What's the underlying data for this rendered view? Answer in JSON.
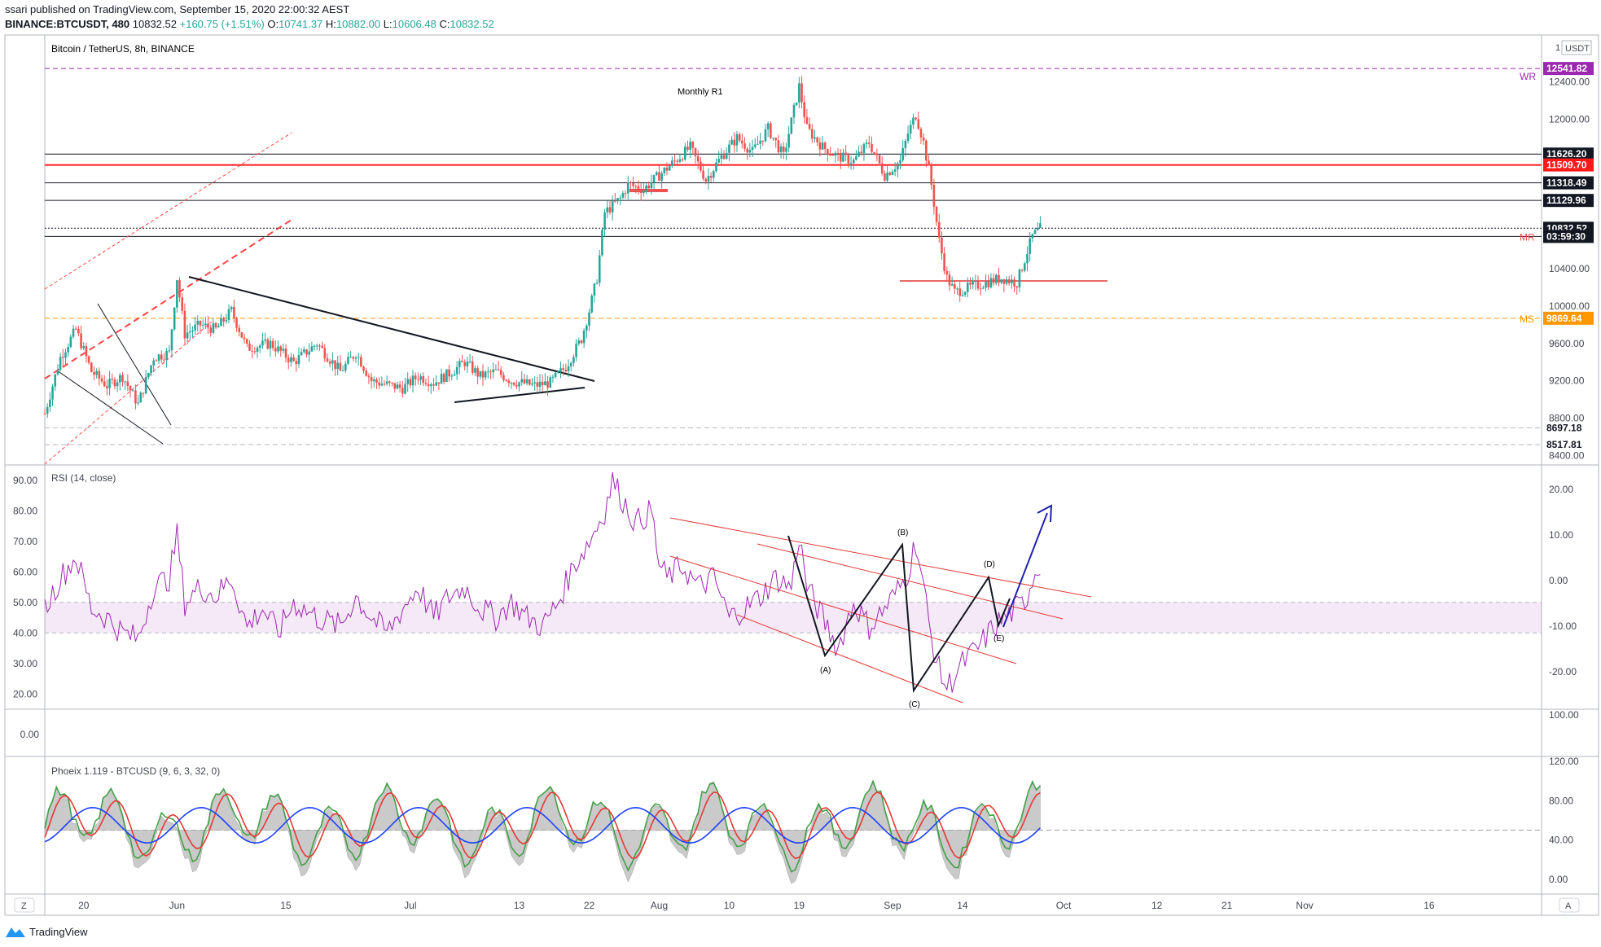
{
  "header": {
    "publisher": "ssari published on TradingView.com, September 15, 2020 22:00:32 AEST",
    "symbol": "BINANCE:BTCUSDT, 480",
    "last": "10832.52",
    "change": "+160.75 (+1.51%)",
    "o_label": "O:",
    "o": "10741.37",
    "h_label": "H:",
    "h": "10882.00",
    "l_label": "L:",
    "l": "10606.48",
    "c_label": "C:",
    "c": "10832.52"
  },
  "footer": {
    "brand": "TradingView"
  },
  "colors": {
    "up": "#26a69a",
    "down": "#ef5350",
    "rsi": "#9c27b0",
    "blue": "#1e22aa",
    "red": "#e53935"
  },
  "chart_data": [
    {
      "type": "candlestick",
      "title": "Bitcoin / TetherUS, 8h, BINANCE",
      "ylim": [
        8300,
        12900
      ],
      "y_ticks": [
        "12400.00",
        "12000.00",
        "10400.00",
        "10000.00",
        "9600.00",
        "9200.00",
        "8800.00",
        "8400.00"
      ],
      "y_tick_values": [
        12400,
        12000,
        10400,
        10000,
        9600,
        9200,
        8800,
        8400
      ],
      "x_ticks": [
        "20",
        "Jun",
        "15",
        "Jul",
        "13",
        "22",
        "Aug",
        "10",
        "19",
        "Sep",
        "14",
        "Oct",
        "12",
        "21",
        "Nov",
        "16"
      ],
      "x_tick_days": [
        5,
        17,
        31,
        47,
        61,
        70,
        79,
        88,
        97,
        109,
        118,
        131,
        143,
        152,
        162,
        178
      ],
      "axis_currency": "USDT",
      "axis_top": "1",
      "price_path": [
        [
          0,
          8850
        ],
        [
          2,
          9450
        ],
        [
          4,
          9750
        ],
        [
          6,
          9300
        ],
        [
          8,
          9150
        ],
        [
          10,
          9250
        ],
        [
          12,
          8950
        ],
        [
          14,
          9450
        ],
        [
          16,
          9500
        ],
        [
          17,
          10300
        ],
        [
          18,
          9700
        ],
        [
          20,
          9800
        ],
        [
          22,
          9750
        ],
        [
          24,
          9950
        ],
        [
          26,
          9550
        ],
        [
          29,
          9600
        ],
        [
          32,
          9400
        ],
        [
          35,
          9600
        ],
        [
          38,
          9300
        ],
        [
          40,
          9500
        ],
        [
          42,
          9200
        ],
        [
          46,
          9120
        ],
        [
          48,
          9250
        ],
        [
          50,
          9180
        ],
        [
          52,
          9280
        ],
        [
          54,
          9400
        ],
        [
          56,
          9250
        ],
        [
          58,
          9300
        ],
        [
          60,
          9200
        ],
        [
          63,
          9150
        ],
        [
          65,
          9180
        ],
        [
          67,
          9350
        ],
        [
          69,
          9650
        ],
        [
          70,
          9950
        ],
        [
          71,
          10300
        ],
        [
          72,
          11000
        ],
        [
          74,
          11150
        ],
        [
          75,
          11300
        ],
        [
          77,
          11250
        ],
        [
          79,
          11400
        ],
        [
          81,
          11550
        ],
        [
          83,
          11700
        ],
        [
          85,
          11350
        ],
        [
          87,
          11600
        ],
        [
          89,
          11800
        ],
        [
          91,
          11650
        ],
        [
          93,
          11900
        ],
        [
          95,
          11600
        ],
        [
          97,
          12350
        ],
        [
          98,
          11900
        ],
        [
          100,
          11700
        ],
        [
          102,
          11600
        ],
        [
          104,
          11550
        ],
        [
          106,
          11750
        ],
        [
          108,
          11400
        ],
        [
          110,
          11550
        ],
        [
          111,
          11850
        ],
        [
          112,
          12050
        ],
        [
          113,
          11750
        ],
        [
          114,
          11300
        ],
        [
          115,
          10700
        ],
        [
          116,
          10300
        ],
        [
          117,
          10150
        ],
        [
          119,
          10200
        ],
        [
          121,
          10250
        ],
        [
          123,
          10300
        ],
        [
          125,
          10250
        ],
        [
          126,
          10500
        ],
        [
          127,
          10750
        ],
        [
          128,
          10830
        ]
      ],
      "levels": [
        {
          "label": "12541.82",
          "value": 12541.82,
          "color": "#9c27b0",
          "style": "dashed",
          "right_tag": "WR"
        },
        {
          "label": "11626.20",
          "value": 11626.2,
          "color": "#131722",
          "style": "solid"
        },
        {
          "label": "11509.70",
          "value": 11509.7,
          "color": "#ff1a1a",
          "style": "solid"
        },
        {
          "label": "11318.49",
          "value": 11318.49,
          "color": "#131722",
          "style": "solid"
        },
        {
          "label": "11129.96",
          "value": 11129.96,
          "color": "#131722",
          "style": "solid"
        },
        {
          "label": "10832.52",
          "value": 10832.52,
          "color": "#131722",
          "style": "dotted"
        },
        {
          "label": "03:59:30",
          "value": 10745,
          "color": "#131722",
          "style": "solid",
          "right_tag": "MR"
        },
        {
          "label": "9869.64",
          "value": 9869.64,
          "color": "#ff9800",
          "style": "dashed",
          "right_tag": "MS"
        },
        {
          "label": "8697.18",
          "value": 8697.18,
          "color": "#b2b5be",
          "style": "dashed"
        },
        {
          "label": "8517.81",
          "value": 8517.81,
          "color": "#b2b5be",
          "style": "dashed"
        }
      ],
      "annotations": [
        "Monthly R1"
      ]
    },
    {
      "type": "line",
      "title": "RSI (14, close)",
      "ylim": [
        15,
        95
      ],
      "y_ticks": [
        "90.00",
        "80.00",
        "70.00",
        "60.00",
        "50.00",
        "40.00",
        "30.00",
        "20.00"
      ],
      "y_tick_values": [
        90,
        80,
        70,
        60,
        50,
        40,
        30,
        20
      ],
      "right_ticks": [
        "20.00",
        "10.00",
        "0.00",
        "-10.00",
        "-20.00"
      ],
      "band": [
        40,
        50
      ],
      "series": [
        {
          "name": "RSI",
          "path": [
            [
              0,
              48
            ],
            [
              2,
              58
            ],
            [
              4,
              65
            ],
            [
              6,
              48
            ],
            [
              8,
              45
            ],
            [
              10,
              40
            ],
            [
              12,
              38
            ],
            [
              14,
              55
            ],
            [
              16,
              58
            ],
            [
              17,
              72
            ],
            [
              18,
              50
            ],
            [
              20,
              55
            ],
            [
              22,
              52
            ],
            [
              24,
              58
            ],
            [
              26,
              42
            ],
            [
              28,
              48
            ],
            [
              30,
              40
            ],
            [
              32,
              50
            ],
            [
              35,
              45
            ],
            [
              38,
              42
            ],
            [
              40,
              52
            ],
            [
              42,
              45
            ],
            [
              44,
              40
            ],
            [
              46,
              48
            ],
            [
              48,
              55
            ],
            [
              50,
              45
            ],
            [
              52,
              52
            ],
            [
              54,
              55
            ],
            [
              56,
              48
            ],
            [
              58,
              45
            ],
            [
              60,
              50
            ],
            [
              62,
              45
            ],
            [
              64,
              42
            ],
            [
              66,
              50
            ],
            [
              68,
              62
            ],
            [
              70,
              70
            ],
            [
              72,
              80
            ],
            [
              73,
              90
            ],
            [
              74,
              85
            ],
            [
              76,
              76
            ],
            [
              78,
              80
            ],
            [
              79,
              62
            ],
            [
              80,
              58
            ],
            [
              82,
              62
            ],
            [
              84,
              55
            ],
            [
              86,
              58
            ],
            [
              88,
              45
            ],
            [
              90,
              48
            ],
            [
              92,
              52
            ],
            [
              94,
              58
            ],
            [
              96,
              55
            ],
            [
              97,
              72
            ],
            [
              98,
              55
            ],
            [
              100,
              45
            ],
            [
              102,
              35
            ],
            [
              104,
              50
            ],
            [
              106,
              42
            ],
            [
              108,
              48
            ],
            [
              110,
              55
            ],
            [
              111,
              60
            ],
            [
              112,
              70
            ],
            [
              113,
              55
            ],
            [
              114,
              38
            ],
            [
              115,
              28
            ],
            [
              116,
              22
            ],
            [
              118,
              30
            ],
            [
              120,
              35
            ],
            [
              122,
              42
            ],
            [
              124,
              46
            ],
            [
              126,
              50
            ],
            [
              127,
              58
            ],
            [
              128,
              63
            ]
          ]
        }
      ],
      "wave_labels": [
        "(A)",
        "(B)",
        "(C)",
        "(D)",
        "(E)"
      ]
    },
    {
      "type": "line",
      "title": "",
      "y_ticks": [
        "0.00"
      ],
      "right_ticks": [
        "100.00"
      ]
    },
    {
      "type": "line",
      "title": "Phoeix 1.119 - BTCUSD (9, 6, 3, 32, 0)",
      "ylim": [
        -15,
        125
      ],
      "right_ticks": [
        "120.00",
        "80.00",
        "40.00",
        "0.00"
      ],
      "right_tick_values": [
        120,
        80,
        40,
        0
      ],
      "baseline": 50,
      "series": [
        {
          "name": "green",
          "color": "#43a047"
        },
        {
          "name": "red",
          "color": "#e53935"
        },
        {
          "name": "blue",
          "color": "#1e40ff"
        },
        {
          "name": "gray-area",
          "color": "#bdbdbd"
        }
      ]
    }
  ]
}
